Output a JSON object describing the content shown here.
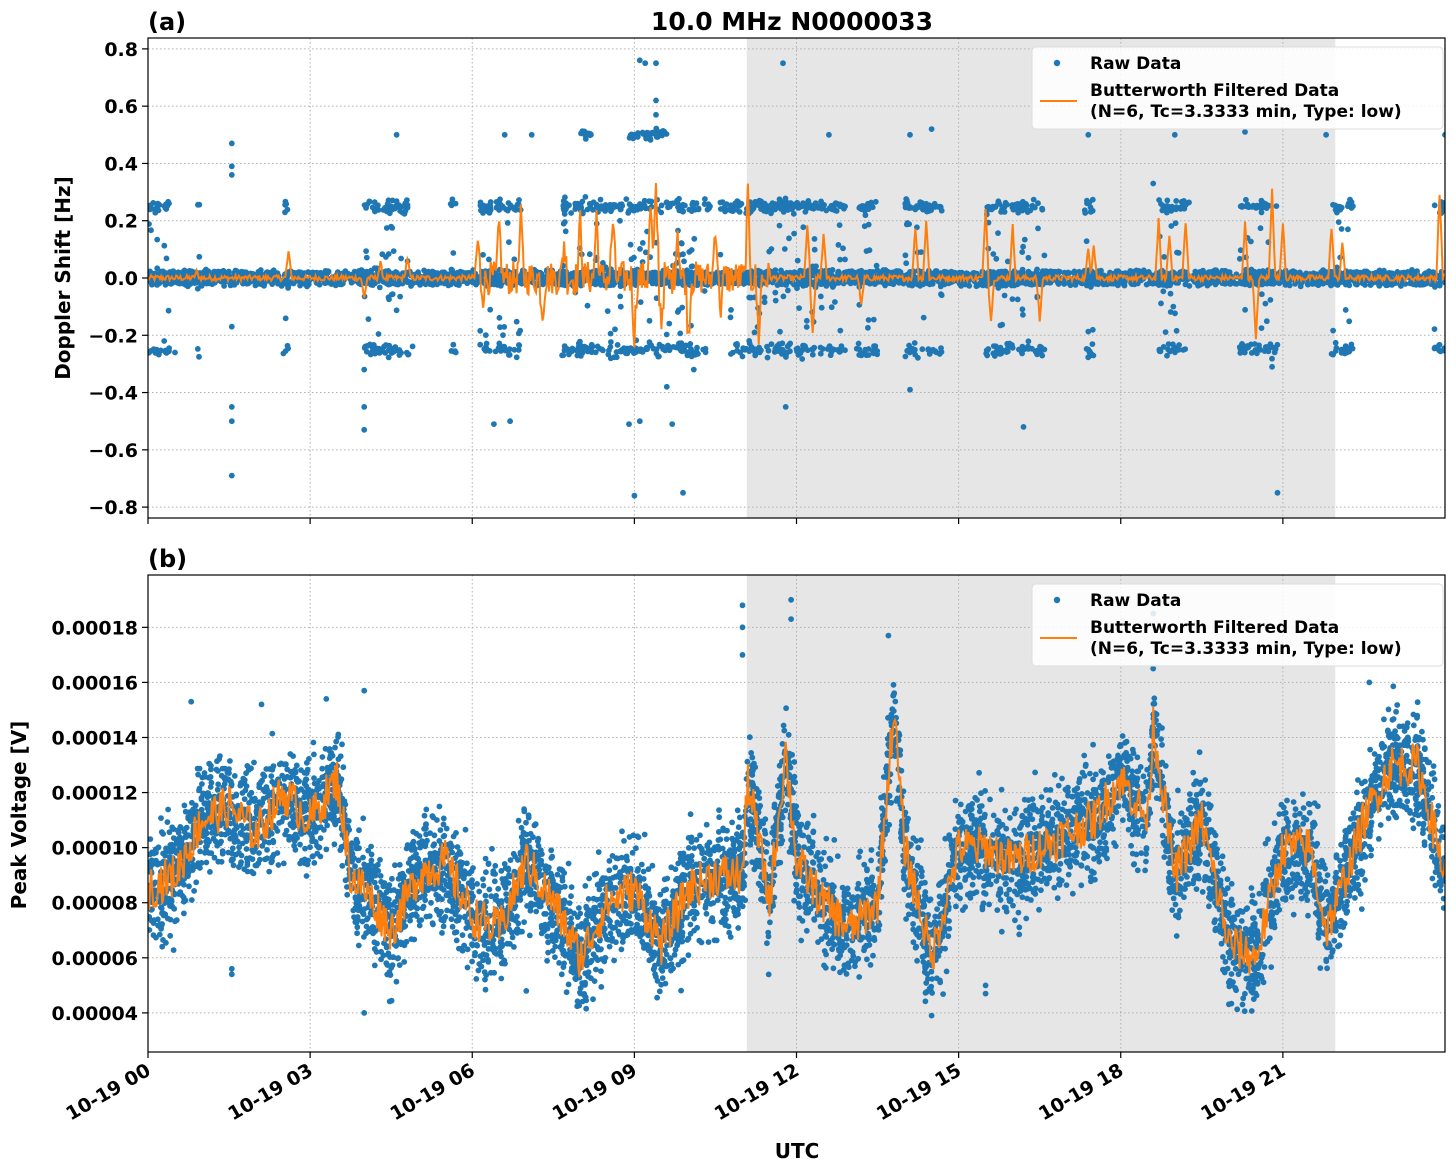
{
  "chart_data": [
    {
      "type": "scatter",
      "panel_label": "(a)",
      "title": "10.0 MHz N0000033",
      "xlabel": "",
      "ylabel": "Doppler Shift [Hz]",
      "xlim_hours": [
        0,
        24
      ],
      "ylim": [
        -0.838,
        0.838
      ],
      "yticks": [
        -0.8,
        -0.6,
        -0.4,
        -0.2,
        0.0,
        0.2,
        0.4,
        0.6,
        0.8
      ],
      "ytick_labels": [
        "−0.8",
        "−0.6",
        "−0.4",
        "−0.2",
        "0.0",
        "0.2",
        "0.4",
        "0.6",
        "0.8"
      ],
      "grid": true,
      "shaded_interval_hours": [
        11.08,
        21.97
      ],
      "legend": {
        "placement": "top-right",
        "entries": [
          "Raw Data",
          "Butterworth Filtered Data",
          "(N=6, Tc=3.3333 min, Type: low)"
        ]
      },
      "series": [
        {
          "name": "Raw Data",
          "color": "#1f77b4",
          "baseline_band": 0.03,
          "side_band_values": [
            0.25,
            -0.25
          ],
          "side_band_intervals_hours": [
            [
              0,
              0.4
            ],
            [
              0.9,
              0.95
            ],
            [
              2.5,
              2.6
            ],
            [
              4.0,
              4.9
            ],
            [
              5.6,
              5.7
            ],
            [
              6.1,
              6.9
            ],
            [
              7.65,
              10.4
            ],
            [
              10.55,
              12.9
            ],
            [
              13.1,
              13.5
            ],
            [
              14.0,
              14.7
            ],
            [
              15.5,
              16.6
            ],
            [
              17.3,
              17.5
            ],
            [
              18.7,
              19.3
            ],
            [
              20.2,
              20.9
            ],
            [
              21.9,
              22.3
            ],
            [
              23.8,
              24
            ]
          ],
          "half_band_intervals_hours": [
            [
              8.0,
              8.2
            ],
            [
              8.9,
              9.6
            ]
          ],
          "outliers": [
            [
              1.55,
              0.47
            ],
            [
              1.55,
              0.39
            ],
            [
              1.55,
              0.36
            ],
            [
              1.55,
              -0.17
            ],
            [
              1.55,
              -0.45
            ],
            [
              1.55,
              -0.5
            ],
            [
              1.55,
              -0.69
            ],
            [
              4.0,
              -0.32
            ],
            [
              4.0,
              -0.45
            ],
            [
              4.0,
              -0.53
            ],
            [
              9.1,
              0.76
            ],
            [
              9.2,
              0.75
            ],
            [
              9.4,
              0.75
            ],
            [
              11.75,
              0.75
            ],
            [
              9.4,
              0.62
            ],
            [
              9.4,
              0.57
            ],
            [
              9.0,
              -0.76
            ],
            [
              9.9,
              -0.75
            ],
            [
              8.9,
              -0.51
            ],
            [
              9.1,
              -0.5
            ],
            [
              9.7,
              -0.51
            ],
            [
              6.4,
              -0.51
            ],
            [
              6.7,
              -0.5
            ],
            [
              16.2,
              -0.52
            ],
            [
              20.9,
              -0.75
            ],
            [
              14.5,
              0.52
            ],
            [
              18.6,
              0.33
            ],
            [
              11.8,
              -0.45
            ],
            [
              14.1,
              -0.39
            ],
            [
              20.3,
              0.51
            ],
            [
              21.8,
              0.5
            ],
            [
              24,
              0.5
            ],
            [
              19.0,
              0.5
            ],
            [
              17.4,
              0.5
            ],
            [
              12.6,
              0.5
            ],
            [
              14.1,
              0.5
            ],
            [
              7.1,
              0.5
            ],
            [
              6.6,
              0.5
            ],
            [
              4.6,
              0.5
            ],
            [
              0.5,
              -0.26
            ],
            [
              0.3,
              -0.22
            ],
            [
              9.6,
              -0.38
            ],
            [
              10.1,
              -0.32
            ],
            [
              20.8,
              -0.31
            ]
          ]
        },
        {
          "name": "Butterworth Filtered Data",
          "color": "#ff7f0e",
          "active_interval_hours": [
            6.1,
            11.5
          ],
          "spikes": [
            [
              0.9,
              0.02
            ],
            [
              2.6,
              0.09
            ],
            [
              4.0,
              -0.07
            ],
            [
              4.3,
              0.05
            ],
            [
              4.8,
              0.07
            ],
            [
              6.1,
              0.13
            ],
            [
              6.2,
              -0.05
            ],
            [
              6.5,
              0.18
            ],
            [
              6.9,
              0.2
            ],
            [
              7.3,
              -0.12
            ],
            [
              7.7,
              0.13
            ],
            [
              8.0,
              0.2
            ],
            [
              8.3,
              0.22
            ],
            [
              8.6,
              0.2
            ],
            [
              9.0,
              -0.2
            ],
            [
              9.3,
              0.25
            ],
            [
              9.4,
              0.3
            ],
            [
              9.5,
              -0.15
            ],
            [
              9.8,
              0.18
            ],
            [
              10.0,
              -0.2
            ],
            [
              10.5,
              0.2
            ],
            [
              10.6,
              -0.1
            ],
            [
              11.1,
              0.27
            ],
            [
              11.3,
              -0.2
            ],
            [
              12.2,
              0.18
            ],
            [
              12.3,
              -0.2
            ],
            [
              12.5,
              0.15
            ],
            [
              13.2,
              -0.1
            ],
            [
              14.2,
              0.18
            ],
            [
              14.4,
              0.2
            ],
            [
              15.5,
              0.25
            ],
            [
              15.6,
              -0.15
            ],
            [
              16.0,
              0.18
            ],
            [
              16.5,
              -0.15
            ],
            [
              17.4,
              0.1
            ],
            [
              17.5,
              0.12
            ],
            [
              18.7,
              0.2
            ],
            [
              18.9,
              0.15
            ],
            [
              19.2,
              0.2
            ],
            [
              20.3,
              0.2
            ],
            [
              20.5,
              -0.22
            ],
            [
              20.8,
              0.32
            ],
            [
              21.0,
              0.2
            ],
            [
              21.9,
              0.18
            ],
            [
              22.1,
              0.12
            ],
            [
              23.9,
              0.3
            ]
          ]
        }
      ]
    },
    {
      "type": "scatter",
      "panel_label": "(b)",
      "xlabel": "UTC",
      "ylabel": "Peak Voltage [V]",
      "xlim_hours": [
        0,
        24
      ],
      "ylim": [
        2.58e-05,
        0.000199
      ],
      "yticks": [
        4e-05,
        6e-05,
        8e-05,
        0.0001,
        0.00012,
        0.00014,
        0.00016,
        0.00018
      ],
      "ytick_labels": [
        "0.00004",
        "0.00006",
        "0.00008",
        "0.00010",
        "0.00012",
        "0.00014",
        "0.00016",
        "0.00018"
      ],
      "xtick_hours": [
        0,
        3,
        6,
        9,
        12,
        15,
        18,
        21
      ],
      "xtick_labels": [
        "10-19 00",
        "10-19 03",
        "10-19 06",
        "10-19 09",
        "10-19 12",
        "10-19 15",
        "10-19 18",
        "10-19 21"
      ],
      "grid": true,
      "shaded_interval_hours": [
        11.08,
        21.97
      ],
      "legend": {
        "placement": "top-right",
        "entries": [
          "Raw Data",
          "Butterworth Filtered Data",
          "(N=6, Tc=3.3333 min, Type: low)"
        ]
      },
      "series": [
        {
          "name": "Raw Data",
          "color": "#1f77b4",
          "spread_about_filtered": 2.2e-05,
          "outliers": [
            [
              11.0,
              0.000188
            ],
            [
              11.0,
              0.00018
            ],
            [
              11.0,
              0.00017
            ],
            [
              11.9,
              0.00019
            ],
            [
              11.9,
              0.000183
            ],
            [
              13.7,
              0.000177
            ],
            [
              18.6,
              0.000165
            ],
            [
              18.6,
              0.000185
            ],
            [
              4.0,
              0.000157
            ],
            [
              4.0,
              4e-05
            ],
            [
              1.55,
              5.6e-05
            ],
            [
              1.55,
              5.4e-05
            ],
            [
              7.0,
              4.8e-05
            ],
            [
              15.5,
              5e-05
            ],
            [
              15.5,
              4.7e-05
            ],
            [
              22.6,
              0.00016
            ],
            [
              0.8,
              0.000153
            ],
            [
              2.1,
              0.000152
            ],
            [
              3.3,
              0.000154
            ]
          ]
        },
        {
          "name": "Butterworth Filtered Data",
          "color": "#ff7f0e",
          "t_hours": [
            0,
            0.5,
            1,
            1.5,
            2,
            2.5,
            3,
            3.5,
            3.75,
            4,
            4.5,
            5,
            5.5,
            6,
            6.5,
            7,
            7.5,
            8,
            8.5,
            9,
            9.5,
            10,
            10.5,
            11,
            11.1,
            11.5,
            11.8,
            12,
            12.5,
            13,
            13.5,
            13.8,
            14,
            14.5,
            15,
            15.5,
            16,
            16.5,
            17,
            17.5,
            18,
            18.5,
            18.6,
            19,
            19.5,
            20,
            20.5,
            21,
            21.5,
            21.8,
            22,
            22.5,
            23,
            23.5,
            24
          ],
          "values": [
            8.5e-05,
            9e-05,
            0.00011,
            0.000115,
            0.000105,
            0.00012,
            0.00011,
            0.000125,
            9e-05,
            8.5e-05,
            7e-05,
            9e-05,
            9.5e-05,
            7.5e-05,
            7e-05,
            9.5e-05,
            8e-05,
            6e-05,
            8e-05,
            8.5e-05,
            6.5e-05,
            8.5e-05,
            9e-05,
            9e-05,
            0.000125,
            8e-05,
            0.000135,
            9.5e-05,
            8e-05,
            7e-05,
            8e-05,
            0.00015,
            0.0001,
            6e-05,
            0.0001,
            0.0001,
            9.5e-05,
            0.0001,
            0.000105,
            0.00011,
            0.000125,
            0.00011,
            0.000145,
            9e-05,
            0.00011,
            6.5e-05,
            6e-05,
            0.0001,
            0.0001,
            7e-05,
            8e-05,
            0.00011,
            0.00013,
            0.00013,
            9e-05
          ]
        }
      ]
    }
  ]
}
